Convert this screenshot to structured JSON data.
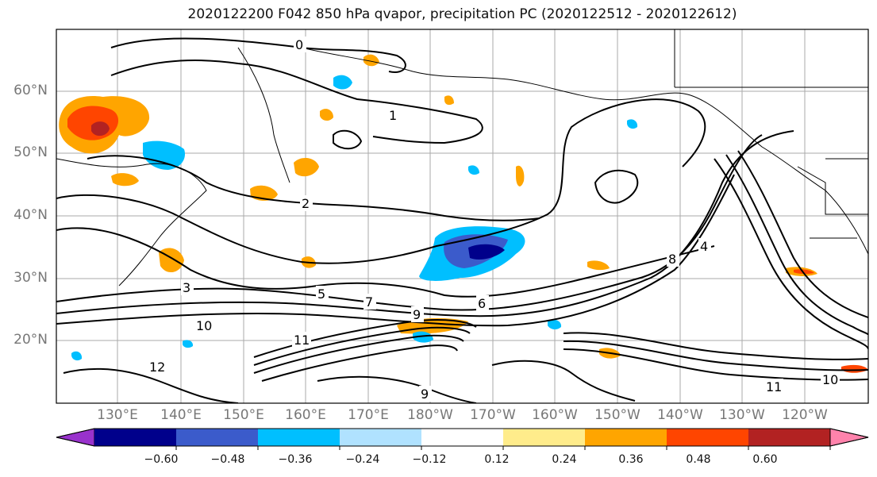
{
  "title": "2020122200 F042 850 hPa qvapor, precipitation PC (2020122512 - 2020122612)",
  "map": {
    "lat_labels": [
      "60°N",
      "50°N",
      "40°N",
      "30°N",
      "20°N"
    ],
    "lon_labels": [
      "130°E",
      "140°E",
      "150°E",
      "160°E",
      "170°E",
      "180°W",
      "170°W",
      "160°W",
      "150°W",
      "140°W",
      "130°W",
      "120°W"
    ],
    "contour_labels": [
      "0",
      "1",
      "2",
      "3",
      "4",
      "5",
      "6",
      "7",
      "8",
      "9",
      "10",
      "11",
      "12"
    ],
    "gridlines": true,
    "contour_color": "#000000"
  },
  "colorbar": {
    "colors": [
      "#9932cc",
      "#00008b",
      "#3b5bcb",
      "#00bfff",
      "#b0e2ff",
      "#ffffff",
      "#ffec8b",
      "#ffa500",
      "#ff4500",
      "#b22222",
      "#ff83ac"
    ],
    "tick_labels": [
      "−0.60",
      "−0.48",
      "−0.36",
      "−0.24",
      "−0.12",
      "0.12",
      "0.24",
      "0.36",
      "0.48",
      "0.60"
    ]
  }
}
